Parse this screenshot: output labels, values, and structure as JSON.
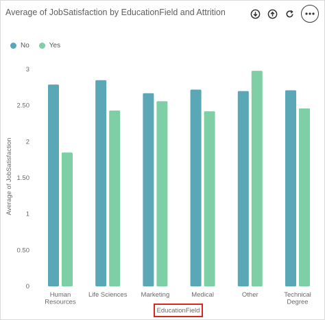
{
  "header": {
    "title": "Average of JobSatisfaction by EducationField and Attrition",
    "toolbar": [
      {
        "name": "download-icon",
        "label": "Download"
      },
      {
        "name": "upload-icon",
        "label": "Upload"
      },
      {
        "name": "refresh-icon",
        "label": "Refresh"
      },
      {
        "name": "more-options-icon",
        "label": "More options"
      }
    ]
  },
  "chart_data": {
    "type": "bar",
    "title": "Average of JobSatisfaction by EducationField and Attrition",
    "xlabel": "EducationField",
    "ylabel": "Average of JobSatisfaction",
    "ylim": [
      0,
      3
    ],
    "yticks": [
      "0",
      "0.50",
      "1",
      "1.50",
      "2",
      "2.50",
      "3"
    ],
    "categories": [
      [
        "Human",
        "Resources"
      ],
      [
        "Life Sciences"
      ],
      [
        "Marketing"
      ],
      [
        "Medical"
      ],
      [
        "Other"
      ],
      [
        "Technical",
        "Degree"
      ]
    ],
    "series": [
      {
        "name": "No",
        "color": "#5aa7b8",
        "values": [
          2.79,
          2.85,
          2.67,
          2.72,
          2.7,
          2.71
        ]
      },
      {
        "name": "Yes",
        "color": "#7ecfa6",
        "values": [
          1.85,
          2.43,
          2.56,
          2.42,
          2.98,
          2.46
        ]
      }
    ],
    "legend_position": "top-left",
    "grid": false
  }
}
